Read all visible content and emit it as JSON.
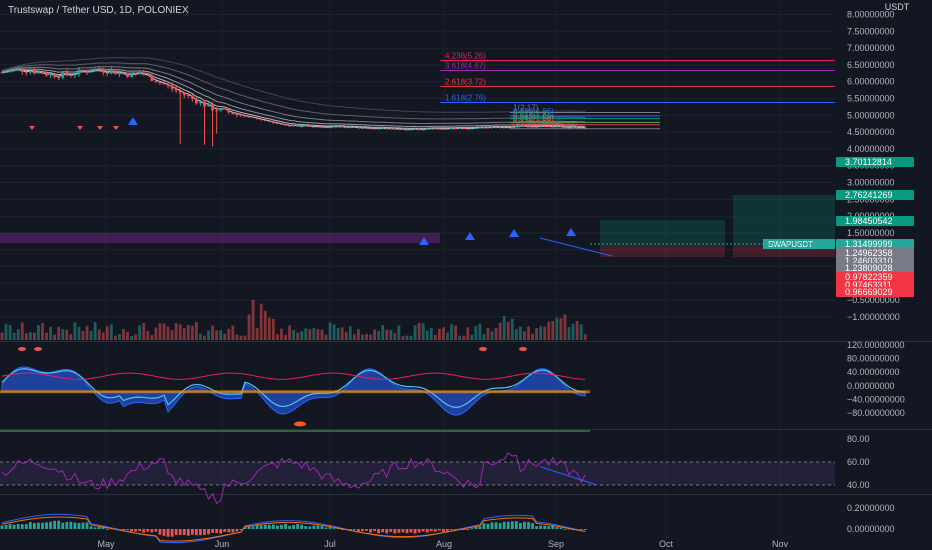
{
  "header": {
    "symbol_title": "Trustswap / Tether USD, 1D, POLONIEX"
  },
  "price_axis": {
    "currency": "USDT",
    "labels": [
      "8.00000000",
      "7.50000000",
      "7.00000000",
      "6.50000000",
      "6.00000000",
      "5.50000000",
      "5.00000000",
      "4.50000000",
      "4.00000000",
      "3.50000000",
      "3.00000000",
      "2.50000000",
      "2.00000000",
      "1.50000000",
      "1.00000000",
      "0.50000000",
      "0.00000000",
      "−0.50000000",
      "−1.00000000"
    ],
    "tags": [
      {
        "text": "3.70112814",
        "color": "#089981"
      },
      {
        "text": "2.76241269",
        "color": "#089981"
      },
      {
        "text": "1.98450542",
        "color": "#089981"
      },
      {
        "text": "1.31499999",
        "color": "#26a69a"
      },
      {
        "text": "1.24962358",
        "color": "#787b86"
      },
      {
        "text": "1.24603310",
        "color": "#787b86"
      },
      {
        "text": "1.23809028",
        "color": "#787b86"
      },
      {
        "text": "0.97822359",
        "color": "#f23645"
      },
      {
        "text": "0.97463311",
        "color": "#f23645"
      },
      {
        "text": "0.96669029",
        "color": "#f23645"
      }
    ],
    "symbol_label": "SWAPUSDT"
  },
  "fib_levels": [
    {
      "label": "4.236(5.26)",
      "color": "#e91e63"
    },
    {
      "label": "3.618(4.67)",
      "color": "#9c27b0"
    },
    {
      "label": "2.618(3.72)",
      "color": "#f23645"
    },
    {
      "label": "1.618(2.76)",
      "color": "#2962ff"
    },
    {
      "label": "1(2.17)",
      "color": "#787b86"
    },
    {
      "label": "0.786(1.96)",
      "color": "#2962ff"
    },
    {
      "label": "0.618(1.8)",
      "color": "#089981"
    },
    {
      "label": "0.382(1.58)",
      "color": "#4caf50"
    },
    {
      "label": "0.236(1.44)",
      "color": "#f23645"
    },
    {
      "label": "0(1.2)",
      "color": "#787b86"
    }
  ],
  "oscillator_axis": {
    "labels": [
      "120.00000000",
      "80.00000000",
      "40.00000000",
      "0.00000000",
      "−40.00000000",
      "−80.00000000"
    ]
  },
  "rsi_axis": {
    "labels": [
      "80.00",
      "60.00",
      "40.00"
    ]
  },
  "macd_axis": {
    "labels": [
      "0.20000000",
      "0.00000000"
    ]
  },
  "time_axis": {
    "labels": [
      "May",
      "Jun",
      "Jul",
      "Aug",
      "Sep",
      "Oct",
      "Nov"
    ]
  },
  "colors": {
    "background": "#131722",
    "up": "#26a69a",
    "down": "#ef5350",
    "grid": "#1e222d",
    "text": "#d1d4dc"
  }
}
